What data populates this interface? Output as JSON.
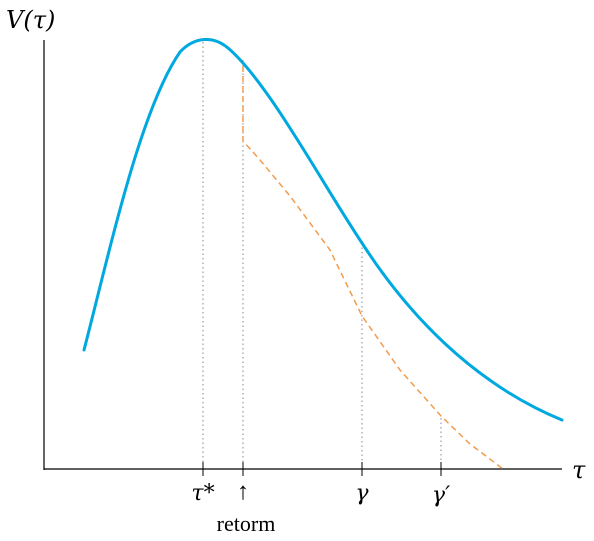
{
  "figure": {
    "y_axis_label": "V(τ)",
    "x_axis_label": "τ",
    "markers": [
      {
        "id": "tau-star",
        "label": "τ*"
      },
      {
        "id": "reform",
        "label": "↑",
        "caption": "retorm"
      },
      {
        "id": "gamma",
        "label": "γ"
      },
      {
        "id": "gamma-prime",
        "label": "γ′"
      }
    ]
  },
  "colors": {
    "main_curve": "#00a8e0",
    "reform_path": "#f39b4c",
    "guide_lines": "#888888",
    "axes": "#000000"
  }
}
